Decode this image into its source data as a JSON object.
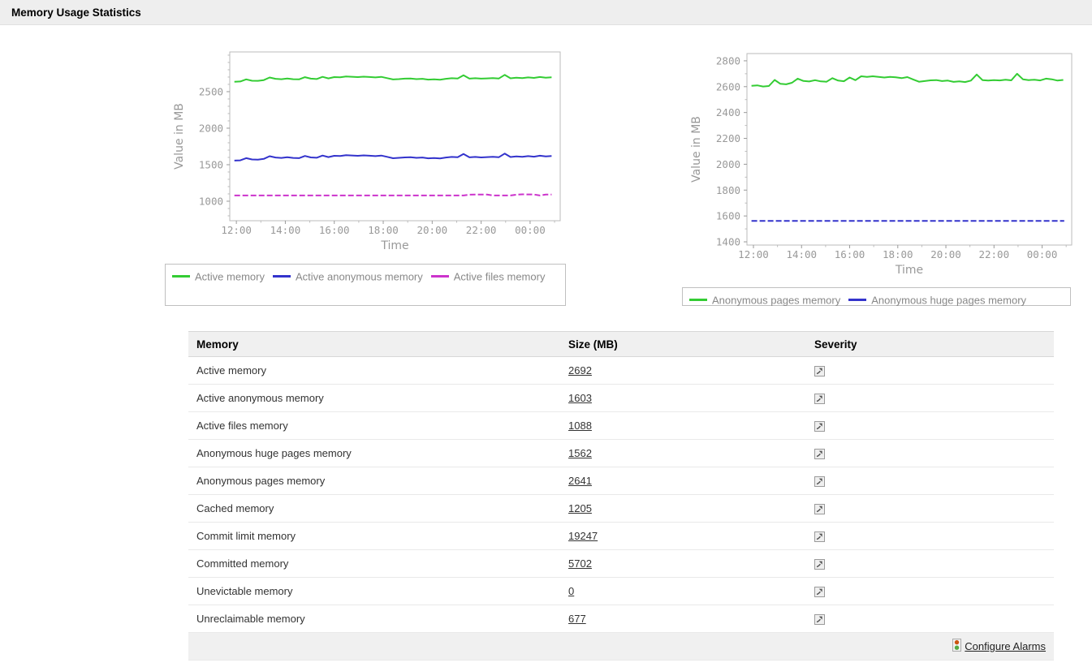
{
  "title_bar": {
    "title": "Memory Usage Statistics"
  },
  "chart_data": [
    {
      "type": "line",
      "ylabel": "Value in MB",
      "xlabel": "Time",
      "ylim": [
        733,
        3044
      ],
      "yticks": [
        1000,
        1500,
        2000,
        2500
      ],
      "xlim": [
        -0.27,
        13.23
      ],
      "xtick_values": [
        0,
        2,
        4,
        6,
        8,
        10,
        12
      ],
      "xtick_labels": [
        "12:00",
        "14:00",
        "16:00",
        "18:00",
        "20:00",
        "22:00",
        "00:00"
      ],
      "minor_x_step": 1,
      "minor_y_step": 100,
      "grid": true,
      "legend_position": "bottom",
      "series": [
        {
          "name": "Active memory",
          "color": "#33cc33",
          "x_start": -0.08,
          "x_step": 0.24,
          "values": [
            2636,
            2640,
            2668,
            2650,
            2648,
            2658,
            2694,
            2676,
            2671,
            2681,
            2671,
            2668,
            2698,
            2678,
            2673,
            2703,
            2682,
            2700,
            2697,
            2708,
            2704,
            2700,
            2705,
            2701,
            2695,
            2703,
            2685,
            2667,
            2672,
            2678,
            2680,
            2672,
            2676,
            2665,
            2670,
            2664,
            2676,
            2684,
            2680,
            2724,
            2679,
            2684,
            2678,
            2682,
            2686,
            2680,
            2730,
            2683,
            2692,
            2686,
            2695,
            2688,
            2701,
            2692,
            2696
          ]
        },
        {
          "name": "Active anonymous memory",
          "color": "#3333cc",
          "x_start": -0.08,
          "x_step": 0.24,
          "values": [
            1556,
            1560,
            1590,
            1572,
            1570,
            1580,
            1616,
            1598,
            1593,
            1603,
            1593,
            1590,
            1620,
            1600,
            1595,
            1625,
            1604,
            1622,
            1619,
            1630,
            1626,
            1622,
            1627,
            1623,
            1617,
            1625,
            1607,
            1589,
            1594,
            1600,
            1602,
            1594,
            1598,
            1587,
            1592,
            1586,
            1598,
            1606,
            1602,
            1646,
            1601,
            1606,
            1600,
            1604,
            1608,
            1602,
            1652,
            1605,
            1614,
            1608,
            1617,
            1610,
            1623,
            1614,
            1618
          ]
        },
        {
          "name": "Active files memory",
          "color": "#cc33cc",
          "x_start": -0.08,
          "x_step": 0.24,
          "dash": "7 3",
          "values": [
            1078,
            1078,
            1079,
            1078,
            1078,
            1078,
            1079,
            1078,
            1078,
            1078,
            1078,
            1078,
            1079,
            1078,
            1078,
            1078,
            1078,
            1079,
            1078,
            1078,
            1078,
            1078,
            1078,
            1079,
            1078,
            1078,
            1078,
            1078,
            1078,
            1078,
            1078,
            1078,
            1078,
            1078,
            1078,
            1078,
            1078,
            1078,
            1078,
            1078,
            1090,
            1092,
            1092,
            1091,
            1079,
            1078,
            1079,
            1078,
            1090,
            1094,
            1093,
            1092,
            1078,
            1091,
            1092
          ]
        }
      ]
    },
    {
      "type": "line",
      "ylabel": "Value in MB",
      "xlabel": "Time",
      "ylim": [
        1375,
        2856
      ],
      "yticks": [
        1400,
        1600,
        1800,
        2000,
        2200,
        2400,
        2600,
        2800
      ],
      "xlim": [
        -0.27,
        13.23
      ],
      "xtick_values": [
        0,
        2,
        4,
        6,
        8,
        10,
        12
      ],
      "xtick_labels": [
        "12:00",
        "14:00",
        "16:00",
        "18:00",
        "20:00",
        "22:00",
        "00:00"
      ],
      "minor_x_step": 1,
      "minor_y_step": 100,
      "grid": true,
      "legend_position": "bottom",
      "series": [
        {
          "name": "Anonymous pages memory",
          "color": "#33cc33",
          "x_start": -0.08,
          "x_step": 0.24,
          "values": [
            2606,
            2610,
            2601,
            2605,
            2652,
            2622,
            2618,
            2630,
            2662,
            2644,
            2640,
            2650,
            2641,
            2638,
            2666,
            2647,
            2642,
            2671,
            2650,
            2680,
            2676,
            2680,
            2675,
            2671,
            2676,
            2672,
            2666,
            2674,
            2656,
            2638,
            2643,
            2649,
            2651,
            2643,
            2647,
            2637,
            2641,
            2636,
            2647,
            2694,
            2651,
            2647,
            2650,
            2648,
            2654,
            2649,
            2700,
            2657,
            2651,
            2654,
            2648,
            2662,
            2657,
            2647,
            2652
          ]
        },
        {
          "name": "Anonymous huge pages memory",
          "color": "#3333cc",
          "x_start": -0.08,
          "x_step": 13.0,
          "dash": "7 3",
          "values": [
            1562,
            1562
          ]
        }
      ]
    }
  ],
  "table": {
    "columns": [
      "Memory",
      "Size (MB)",
      "Severity"
    ],
    "severity_icon_name": "trend-up-icon",
    "rows": [
      {
        "memory": "Active memory",
        "size": "2692"
      },
      {
        "memory": "Active anonymous memory",
        "size": "1603"
      },
      {
        "memory": "Active files memory",
        "size": "1088"
      },
      {
        "memory": "Anonymous huge pages memory",
        "size": "1562"
      },
      {
        "memory": "Anonymous pages memory",
        "size": "2641"
      },
      {
        "memory": "Cached memory",
        "size": "1205"
      },
      {
        "memory": "Commit limit memory",
        "size": "19247"
      },
      {
        "memory": "Committed memory",
        "size": "5702"
      },
      {
        "memory": "Unevictable memory",
        "size": "0"
      },
      {
        "memory": "Unreclaimable memory",
        "size": "677"
      }
    ]
  },
  "footer": {
    "configure_alarms_label": "Configure Alarms",
    "icon": "traffic-light-icon",
    "traffic_light_colors": {
      "top": "#cc5511",
      "bottom": "#55aa44"
    }
  },
  "style_colors": {
    "axis_text": "#999999",
    "grid": "#dddddd",
    "plot_border": "#bbbbbb",
    "legend_text": "#888888"
  }
}
